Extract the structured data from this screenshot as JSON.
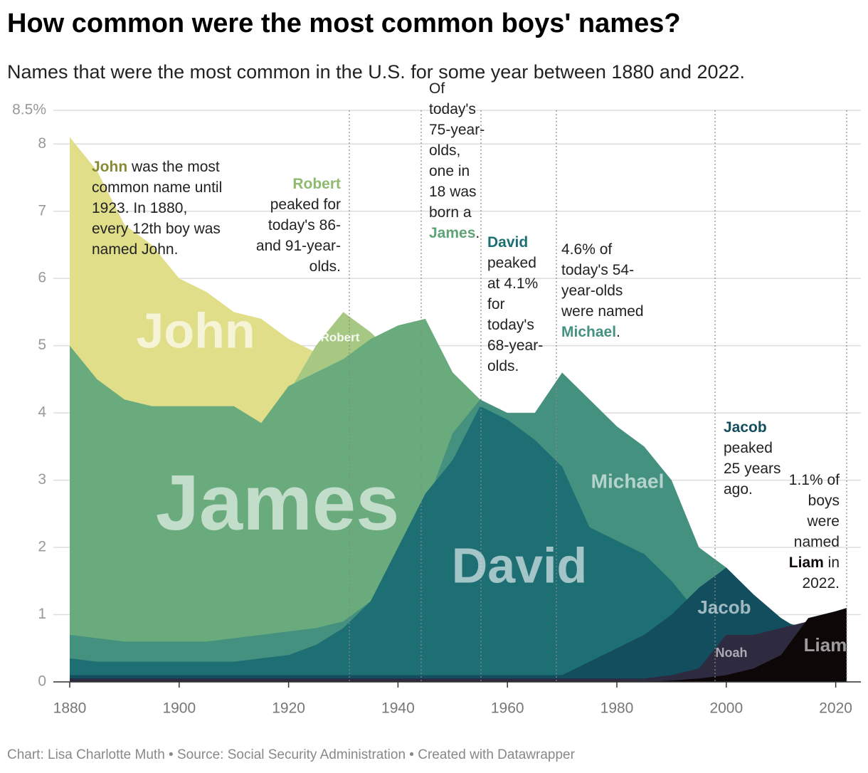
{
  "chart_data": {
    "type": "area",
    "title": "How common were the most common boys' names?",
    "subtitle": "Names that were the most common in the U.S. for some year between 1880 and 2022.",
    "footer": "Chart: Lisa Charlotte Muth • Source: Social Security Administration • Created with Datawrapper",
    "x": [
      1880,
      1885,
      1890,
      1895,
      1900,
      1905,
      1910,
      1915,
      1920,
      1925,
      1930,
      1935,
      1940,
      1945,
      1950,
      1955,
      1960,
      1965,
      1970,
      1975,
      1980,
      1985,
      1990,
      1995,
      2000,
      2005,
      2010,
      2015,
      2020,
      2022
    ],
    "xlim": [
      1880,
      2022
    ],
    "xticks": [
      1880,
      1900,
      1920,
      1940,
      1960,
      1980,
      2000,
      2020
    ],
    "ylim": [
      0,
      8.5
    ],
    "yticks": [
      0,
      1,
      2,
      3,
      4,
      5,
      6,
      7,
      8,
      {
        "value": 8.5,
        "label": "8.5%"
      }
    ],
    "grid": true,
    "series": [
      {
        "name": "John",
        "color": "#e1de8a",
        "values": [
          8.1,
          7.6,
          6.8,
          6.5,
          6.0,
          5.8,
          5.5,
          5.4,
          5.1,
          4.9,
          4.7,
          4.4,
          4.0,
          3.7,
          3.3,
          3.2,
          3.1,
          2.8,
          2.4,
          2.1,
          1.9,
          1.7,
          1.4,
          1.1,
          0.8,
          0.6,
          0.5,
          0.4,
          0.3,
          0.25
        ]
      },
      {
        "name": "Robert",
        "color": "#a6c883",
        "values": [
          2.0,
          2.0,
          2.0,
          2.0,
          2.0,
          2.2,
          2.5,
          3.5,
          4.3,
          5.0,
          5.5,
          5.2,
          4.8,
          4.3,
          3.7,
          3.2,
          2.9,
          2.6,
          2.2,
          1.8,
          1.5,
          1.2,
          1.0,
          0.8,
          0.6,
          0.5,
          0.4,
          0.3,
          0.25,
          0.25
        ]
      },
      {
        "name": "James",
        "color": "#6aab7d",
        "values": [
          5.0,
          4.5,
          4.2,
          4.1,
          4.1,
          4.1,
          4.1,
          3.85,
          4.4,
          4.6,
          4.8,
          5.1,
          5.3,
          5.4,
          4.6,
          4.2,
          3.9,
          3.5,
          2.9,
          2.5,
          2.2,
          1.9,
          1.6,
          1.3,
          1.0,
          0.8,
          0.6,
          0.55,
          0.55,
          0.55
        ]
      },
      {
        "name": "Michael",
        "color": "#44917f",
        "values": [
          0.7,
          0.65,
          0.6,
          0.6,
          0.6,
          0.6,
          0.65,
          0.7,
          0.75,
          0.8,
          0.9,
          1.2,
          1.8,
          2.6,
          3.7,
          4.2,
          4.0,
          4.0,
          4.6,
          4.2,
          3.8,
          3.5,
          3.0,
          2.0,
          1.7,
          1.2,
          0.9,
          0.8,
          0.6,
          0.6
        ]
      },
      {
        "name": "David",
        "color": "#1d6f73",
        "values": [
          0.35,
          0.3,
          0.3,
          0.3,
          0.3,
          0.3,
          0.3,
          0.35,
          0.4,
          0.55,
          0.8,
          1.2,
          2.0,
          2.8,
          3.3,
          4.1,
          3.9,
          3.6,
          3.2,
          2.3,
          2.1,
          1.9,
          1.5,
          1.0,
          0.8,
          0.6,
          0.5,
          0.4,
          0.3,
          0.3
        ]
      },
      {
        "name": "Jacob",
        "color": "#134e5f",
        "values": [
          0.1,
          0.1,
          0.1,
          0.1,
          0.1,
          0.1,
          0.1,
          0.1,
          0.1,
          0.1,
          0.1,
          0.1,
          0.1,
          0.1,
          0.1,
          0.1,
          0.1,
          0.1,
          0.1,
          0.3,
          0.5,
          0.7,
          1.0,
          1.4,
          1.7,
          1.3,
          0.95,
          0.7,
          0.5,
          0.45
        ]
      },
      {
        "name": "Noah",
        "color": "#2e2a40",
        "values": [
          0.05,
          0.05,
          0.05,
          0.05,
          0.05,
          0.05,
          0.05,
          0.05,
          0.05,
          0.05,
          0.05,
          0.05,
          0.05,
          0.05,
          0.05,
          0.05,
          0.05,
          0.05,
          0.05,
          0.05,
          0.05,
          0.05,
          0.1,
          0.2,
          0.7,
          0.7,
          0.8,
          0.9,
          0.9,
          0.85
        ]
      },
      {
        "name": "Liam",
        "color": "#0d0708",
        "values": [
          0,
          0,
          0,
          0,
          0,
          0,
          0,
          0,
          0,
          0,
          0,
          0,
          0,
          0,
          0,
          0,
          0,
          0,
          0,
          0,
          0,
          0,
          0.02,
          0.05,
          0.1,
          0.2,
          0.4,
          0.95,
          1.05,
          1.1
        ]
      }
    ],
    "annotations": [
      {
        "name": "John",
        "after": " was the most common name until 1923. In 1880, every 12th boy was named John.",
        "color": "#8a8a36"
      },
      {
        "name": "Robert",
        "after": " peaked for today's 86- and 91-year-olds.",
        "color": "#8fb96f"
      },
      {
        "before": "Of today's 75-year-olds, one in 18 was born a ",
        "name": "James",
        "after": ".",
        "color": "#5fa477"
      },
      {
        "name": "David",
        "after": " peaked at 4.1% for today's 68-year-olds.",
        "color": "#1d6f73"
      },
      {
        "before": "4.6% of today's 54-year-olds were named ",
        "name": "Michael",
        "after": ".",
        "color": "#44917f"
      },
      {
        "name": "Jacob",
        "after": " peaked 25 years ago.",
        "color": "#134e5f"
      },
      {
        "before": "1.1% of boys were named ",
        "name": "Liam",
        "after": " in 2022.",
        "color": "#0d0708"
      }
    ]
  }
}
